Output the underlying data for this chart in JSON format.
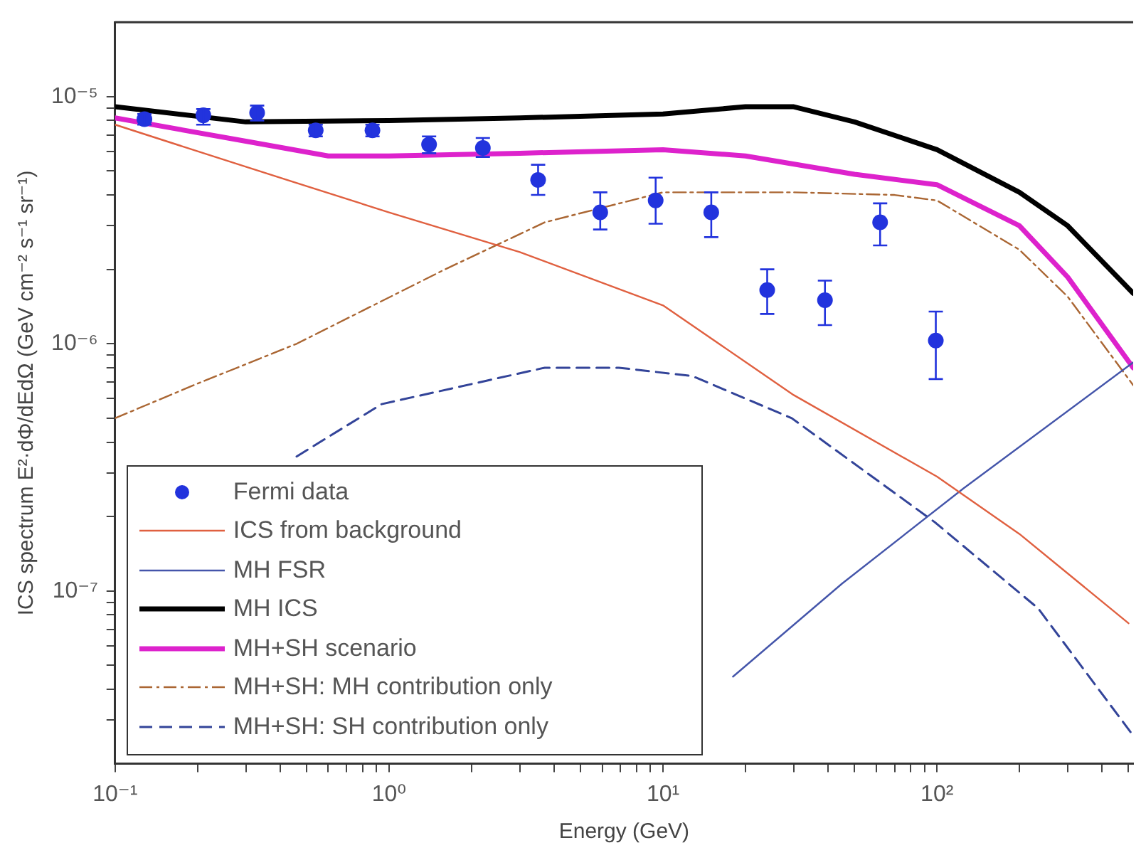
{
  "chart_data": {
    "type": "line",
    "xlabel": "Energy (GeV)",
    "ylabel": "ICS spectrum E²·dΦ/dEdΩ (GeV cm⁻² s⁻¹ sr⁻¹)",
    "log": "xy",
    "legend": "bottom left",
    "xlim": [
      0.1,
      520
    ],
    "ylim": [
      2e-08,
      2e-05
    ],
    "xticks": [
      {
        "value": 0.1,
        "label": "10⁻¹"
      },
      {
        "value": 0.2,
        "label": null
      },
      {
        "value": 0.3,
        "label": null
      },
      {
        "value": 0.4,
        "label": null
      },
      {
        "value": 0.5,
        "label": null
      },
      {
        "value": 0.6,
        "label": null
      },
      {
        "value": 0.7,
        "label": null
      },
      {
        "value": 0.8,
        "label": null
      },
      {
        "value": 0.9,
        "label": null
      },
      {
        "value": 1,
        "label": "10⁰"
      },
      {
        "value": 2,
        "label": null
      },
      {
        "value": 3,
        "label": null
      },
      {
        "value": 4,
        "label": null
      },
      {
        "value": 5,
        "label": null
      },
      {
        "value": 6,
        "label": null
      },
      {
        "value": 7,
        "label": null
      },
      {
        "value": 8,
        "label": null
      },
      {
        "value": 9,
        "label": null
      },
      {
        "value": 10,
        "label": "10¹"
      },
      {
        "value": 20,
        "label": null
      },
      {
        "value": 30,
        "label": null
      },
      {
        "value": 40,
        "label": null
      },
      {
        "value": 50,
        "label": null
      },
      {
        "value": 60,
        "label": null
      },
      {
        "value": 70,
        "label": null
      },
      {
        "value": 80,
        "label": null
      },
      {
        "value": 90,
        "label": null
      },
      {
        "value": 100,
        "label": "10²"
      },
      {
        "value": 200,
        "label": null
      },
      {
        "value": 300,
        "label": null
      },
      {
        "value": 400,
        "label": null
      },
      {
        "value": 500,
        "label": null
      }
    ],
    "yticks": [
      {
        "value": 3e-08,
        "label": null
      },
      {
        "value": 4e-08,
        "label": null
      },
      {
        "value": 5e-08,
        "label": null
      },
      {
        "value": 6e-08,
        "label": null
      },
      {
        "value": 7e-08,
        "label": null
      },
      {
        "value": 8e-08,
        "label": null
      },
      {
        "value": 9e-08,
        "label": null
      },
      {
        "value": 1e-07,
        "label": "10⁻⁷"
      },
      {
        "value": 2e-07,
        "label": null
      },
      {
        "value": 3e-07,
        "label": null
      },
      {
        "value": 4e-07,
        "label": null
      },
      {
        "value": 5e-07,
        "label": null
      },
      {
        "value": 6e-07,
        "label": null
      },
      {
        "value": 7e-07,
        "label": null
      },
      {
        "value": 8e-07,
        "label": null
      },
      {
        "value": 9e-07,
        "label": null
      },
      {
        "value": 1e-06,
        "label": "10⁻⁶"
      },
      {
        "value": 2e-06,
        "label": null
      },
      {
        "value": 3e-06,
        "label": null
      },
      {
        "value": 4e-06,
        "label": null
      },
      {
        "value": 5e-06,
        "label": null
      },
      {
        "value": 6e-06,
        "label": null
      },
      {
        "value": 7e-06,
        "label": null
      },
      {
        "value": 8e-06,
        "label": null
      },
      {
        "value": 9e-06,
        "label": null
      },
      {
        "value": 1e-05,
        "label": "10⁻⁵"
      }
    ],
    "series": [
      {
        "type": "scatter",
        "marker": "circle",
        "name": "Fermi data",
        "color": "#2233dd",
        "x": [
          0.128,
          0.21,
          0.33,
          0.54,
          0.87,
          1.4,
          2.2,
          3.5,
          5.9,
          9.4,
          15,
          24,
          39,
          62,
          99
        ],
        "values": [
          8.1e-06,
          8.4e-06,
          8.6e-06,
          7.3e-06,
          7.3e-06,
          6.4e-06,
          6.2e-06,
          4.6e-06,
          3.4e-06,
          3.8e-06,
          3.4e-06,
          1.65e-06,
          1.5e-06,
          3.1e-06,
          1.03e-06
        ],
        "errors": [
          [
            7.7e-06,
            8.5e-06
          ],
          [
            7.7e-06,
            8.9e-06
          ],
          [
            8e-06,
            9.2e-06
          ],
          [
            6.9e-06,
            7.7e-06
          ],
          [
            6.9e-06,
            7.7e-06
          ],
          [
            5.9e-06,
            6.9e-06
          ],
          [
            5.7e-06,
            6.8e-06
          ],
          [
            4e-06,
            5.3e-06
          ],
          [
            2.9e-06,
            4.1e-06
          ],
          [
            3.06e-06,
            4.7e-06
          ],
          [
            2.7e-06,
            4.1e-06
          ],
          [
            1.32e-06,
            2e-06
          ],
          [
            1.19e-06,
            1.8e-06
          ],
          [
            2.5e-06,
            3.7e-06
          ],
          [
            7.2e-07,
            1.35e-06
          ]
        ]
      },
      {
        "type": "line",
        "line_style": "solid",
        "name": "ICS from background",
        "color": "#e06040",
        "x": [
          0.1,
          0.3,
          1,
          3,
          10,
          30,
          100,
          200,
          500
        ],
        "values": [
          7.7e-06,
          5.2e-06,
          3.4e-06,
          2.35e-06,
          1.43e-06,
          6.2e-07,
          2.9e-07,
          1.7e-07,
          7.4e-08
        ]
      },
      {
        "type": "line",
        "line_style": "solid",
        "name": "MH FSR",
        "color": "#4455aa",
        "x": [
          18,
          45,
          125,
          520
        ],
        "values": [
          4.5e-08,
          1.07e-07,
          2.6e-07,
          8.4e-07
        ]
      },
      {
        "type": "line",
        "line_style": "solid",
        "name": "MH ICS",
        "color": "#000000",
        "x": [
          0.1,
          0.3,
          1,
          3,
          10,
          20,
          30,
          50,
          100,
          200,
          300,
          520
        ],
        "values": [
          9.1e-06,
          7.9e-06,
          8e-06,
          8.2e-06,
          8.5e-06,
          9.1e-06,
          9.1e-06,
          7.9e-06,
          6.1e-06,
          4.1e-06,
          3e-06,
          1.6e-06
        ]
      },
      {
        "type": "line",
        "line_style": "solid",
        "name": "MH+SH scenario",
        "color": "#dd22cc",
        "x": [
          0.1,
          0.3,
          0.6,
          1,
          3,
          10,
          20,
          50,
          100,
          200,
          300,
          520
        ],
        "values": [
          8.2e-06,
          6.6e-06,
          5.75e-06,
          5.75e-06,
          5.9e-06,
          6.1e-06,
          5.75e-06,
          4.85e-06,
          4.4e-06,
          3e-06,
          1.86e-06,
          8e-07
        ]
      },
      {
        "type": "line",
        "line_style": "dashed",
        "name": "MH+SH: MH contribution only",
        "color": "#aa6633",
        "x": [
          0.1,
          0.2,
          0.46,
          1.6,
          3.7,
          10,
          30,
          70,
          100,
          200,
          300,
          520
        ],
        "values": [
          5e-07,
          6.9e-07,
          1e-06,
          2e-06,
          3.1e-06,
          4.1e-06,
          4.1e-06,
          4e-06,
          3.8e-06,
          2.4e-06,
          1.55e-06,
          6.8e-07
        ]
      },
      {
        "type": "line",
        "line_style": "dashed",
        "name": "MH+SH: SH contribution only",
        "color": "#334499",
        "x": [
          0.46,
          0.94,
          3.7,
          6.9,
          12.8,
          29.5,
          98,
          234,
          520
        ],
        "values": [
          3.5e-07,
          5.7e-07,
          8e-07,
          8e-07,
          7.4e-07,
          5e-07,
          1.9e-07,
          8.5e-08,
          2.6e-08
        ]
      }
    ]
  }
}
